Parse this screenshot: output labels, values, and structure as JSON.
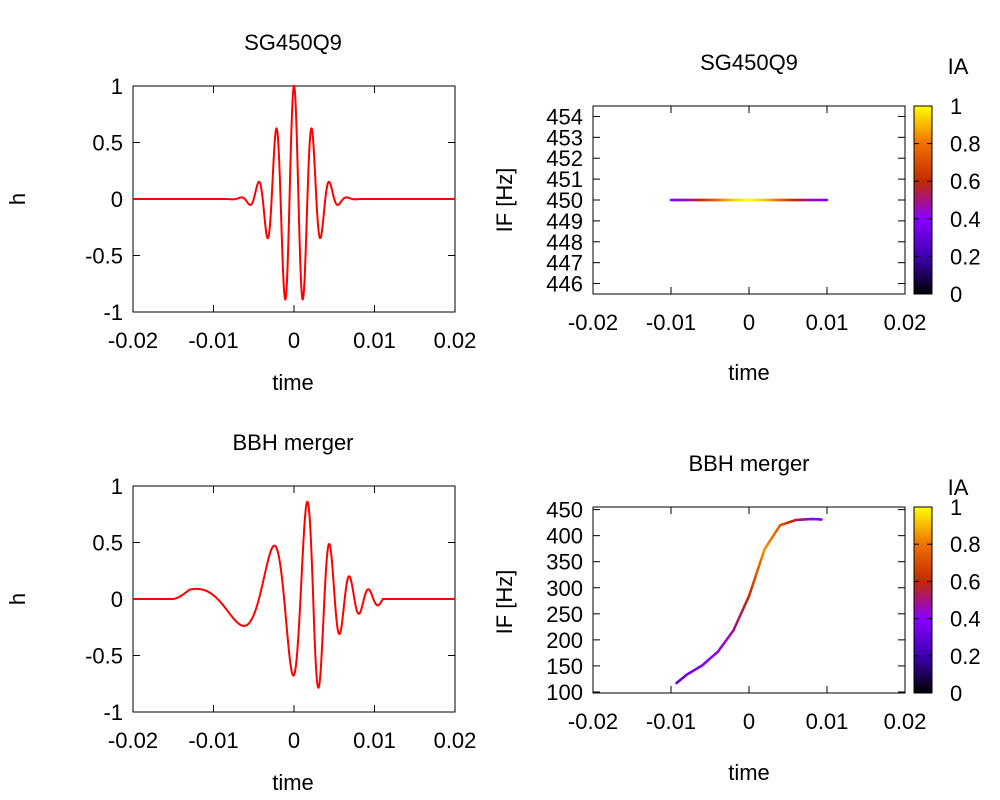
{
  "chart_data": [
    {
      "type": "line",
      "title": "SG450Q9",
      "xlabel": "time",
      "ylabel": "h",
      "xlim": [
        -0.02,
        0.02
      ],
      "ylim": [
        -1,
        1
      ],
      "xticks": [
        "-0.02",
        "-0.01",
        "0",
        "0.01",
        "0.02"
      ],
      "yticks": [
        "1",
        "0.5",
        "0",
        "-0.5",
        "-1"
      ],
      "line_color": "#ff0000",
      "signal": {
        "kind": "sine-gaussian",
        "f0": 450,
        "t0": 0,
        "tau": 0.0032,
        "amplitude": 1,
        "phase": "cos",
        "support": [
          -0.01,
          0.01
        ]
      }
    },
    {
      "type": "line",
      "title": "SG450Q9",
      "xlabel": "time",
      "ylabel": "IF [Hz]",
      "xlim": [
        -0.02,
        0.02
      ],
      "ylim": [
        445.5,
        454.5
      ],
      "xticks": [
        "-0.02",
        "-0.01",
        "0",
        "0.01",
        "0.02"
      ],
      "yticks": [
        "454",
        "453",
        "452",
        "451",
        "450",
        "449",
        "448",
        "447",
        "446"
      ],
      "colorbar": {
        "label": "IA",
        "range": [
          0,
          1
        ],
        "ticks": [
          "1",
          "0.8",
          "0.6",
          "0.4",
          "0.2",
          "0"
        ]
      },
      "x": [
        -0.01,
        -0.008,
        -0.006,
        -0.004,
        -0.002,
        0,
        0.002,
        0.004,
        0.006,
        0.008,
        0.01
      ],
      "y": [
        450,
        450,
        450,
        450,
        450,
        450,
        450,
        450,
        450,
        450,
        450
      ],
      "ia": [
        0.38,
        0.45,
        0.6,
        0.78,
        0.93,
        1.0,
        0.93,
        0.78,
        0.6,
        0.45,
        0.38
      ]
    },
    {
      "type": "line",
      "title": "BBH merger",
      "xlabel": "time",
      "ylabel": "h",
      "xlim": [
        -0.02,
        0.02
      ],
      "ylim": [
        -1,
        1
      ],
      "xticks": [
        "-0.02",
        "-0.01",
        "0",
        "0.01",
        "0.02"
      ],
      "yticks": [
        "1",
        "0.5",
        "0",
        "-0.5",
        "-1"
      ],
      "line_color": "#ff0000",
      "signal": {
        "kind": "chirp",
        "support": [
          -0.015,
          0.011
        ],
        "peak_time": 0.0025
      }
    },
    {
      "type": "line",
      "title": "BBH merger",
      "xlabel": "time",
      "ylabel": "IF [Hz]",
      "xlim": [
        -0.02,
        0.02
      ],
      "ylim": [
        98,
        455
      ],
      "xticks": [
        "-0.02",
        "-0.01",
        "0",
        "0.01",
        "0.02"
      ],
      "yticks": [
        "450",
        "400",
        "350",
        "300",
        "250",
        "200",
        "150",
        "100"
      ],
      "colorbar": {
        "label": "IA",
        "range": [
          0,
          1
        ],
        "ticks": [
          "1",
          "0.8",
          "0.6",
          "0.4",
          "0.2",
          "0"
        ]
      },
      "x": [
        -0.0093,
        -0.008,
        -0.006,
        -0.004,
        -0.002,
        0,
        0.002,
        0.004,
        0.006,
        0.008,
        0.0093
      ],
      "y": [
        117,
        133,
        151,
        177,
        218,
        284,
        374,
        420,
        430,
        432,
        431
      ],
      "ia": [
        0.3,
        0.35,
        0.38,
        0.42,
        0.48,
        0.6,
        0.85,
        0.75,
        0.55,
        0.42,
        0.38
      ]
    }
  ]
}
